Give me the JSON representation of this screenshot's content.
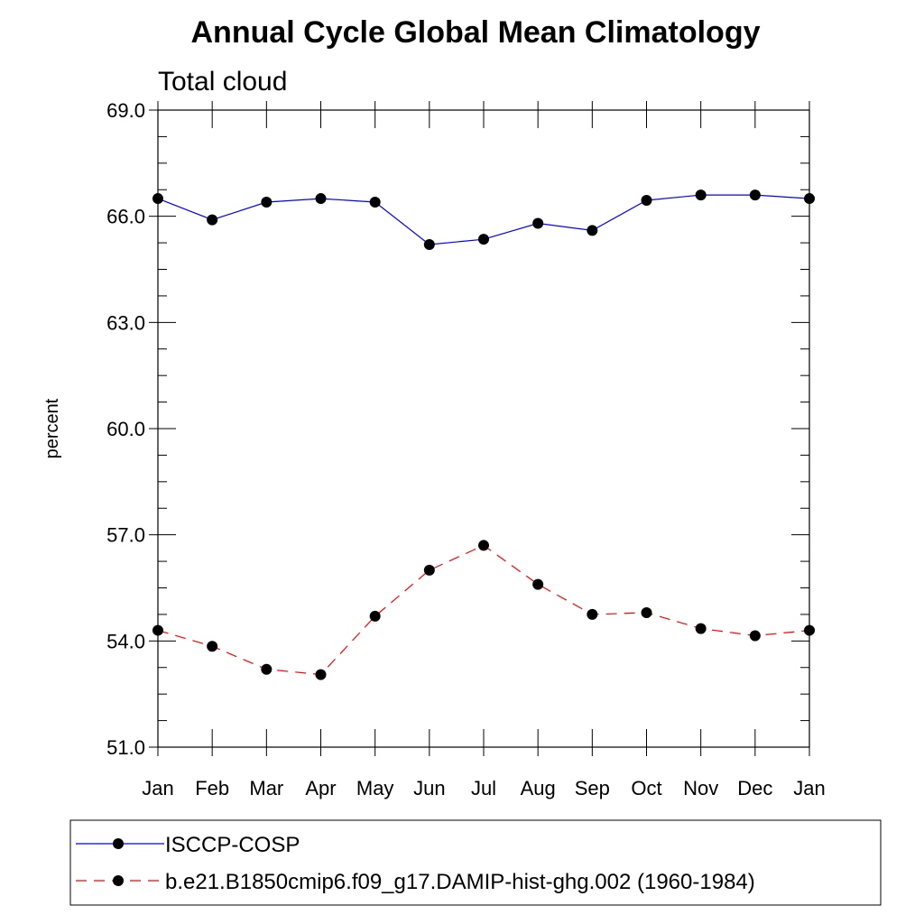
{
  "chart_data": {
    "type": "line",
    "title": "Annual Cycle Global Mean Climatology",
    "subtitle": "Total cloud",
    "ylabel": "percent",
    "xlabel": "",
    "x": [
      "Jan",
      "Feb",
      "Mar",
      "Apr",
      "May",
      "Jun",
      "Jul",
      "Aug",
      "Sep",
      "Oct",
      "Nov",
      "Dec",
      "Jan"
    ],
    "ylim": [
      51.0,
      69.0
    ],
    "yticks": [
      "51.0",
      "54.0",
      "57.0",
      "60.0",
      "63.0",
      "66.0",
      "69.0"
    ],
    "grid": false,
    "legend_position": "bottom",
    "series": [
      {
        "name": "ISCCP-COSP",
        "color": "#0000ff",
        "line_style": "solid",
        "marker": "filled-circle",
        "values": [
          66.5,
          65.9,
          66.4,
          66.5,
          66.4,
          65.2,
          65.35,
          65.8,
          65.6,
          66.45,
          66.6,
          66.6,
          66.5
        ]
      },
      {
        "name": "b.e21.B1850cmip6.f09_g17.DAMIP-hist-ghg.002 (1960-1984)",
        "color": "#ff0000",
        "line_style": "dashed",
        "marker": "filled-circle",
        "values": [
          54.3,
          53.85,
          53.2,
          53.05,
          54.7,
          56.0,
          56.7,
          55.6,
          54.75,
          54.8,
          54.35,
          54.15,
          54.3
        ]
      }
    ]
  }
}
